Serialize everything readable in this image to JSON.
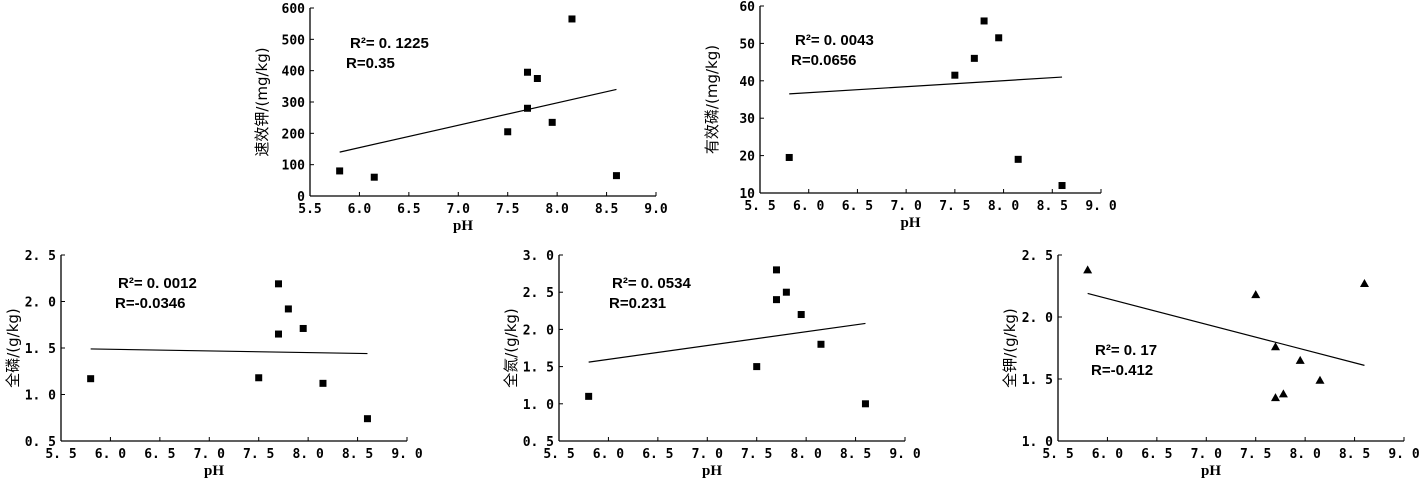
{
  "chart_data": [
    {
      "type": "scatter",
      "xlabel": "pH",
      "ylabel": "速效钾/(mg/kg)",
      "xlim": [
        5.5,
        9.0
      ],
      "ylim": [
        0,
        600
      ],
      "xticks": [
        "5.5",
        "6.0",
        "6.5",
        "7.0",
        "7.5",
        "8.0",
        "8.5",
        "9.0"
      ],
      "yticks": [
        "0",
        "100",
        "200",
        "300",
        "400",
        "500",
        "600"
      ],
      "marker": "square",
      "points": [
        {
          "x": 5.8,
          "y": 80
        },
        {
          "x": 6.15,
          "y": 60
        },
        {
          "x": 7.5,
          "y": 205
        },
        {
          "x": 7.7,
          "y": 280
        },
        {
          "x": 7.7,
          "y": 395
        },
        {
          "x": 7.8,
          "y": 375
        },
        {
          "x": 7.95,
          "y": 235
        },
        {
          "x": 8.15,
          "y": 565
        },
        {
          "x": 8.6,
          "y": 65
        }
      ],
      "trendline": [
        [
          5.8,
          140
        ],
        [
          8.6,
          340
        ]
      ],
      "r2_label": "R²=  0. 1225",
      "r_label": "R=0.35"
    },
    {
      "type": "scatter",
      "xlabel": "pH",
      "ylabel": "有效磷/(mg/kg)",
      "xlim": [
        5.5,
        9.0
      ],
      "ylim": [
        10,
        60
      ],
      "xticks": [
        "5. 5",
        "6. 0",
        "6. 5",
        "7. 0",
        "7. 5",
        "8. 0",
        "8. 5",
        "9. 0"
      ],
      "yticks": [
        "10",
        "20",
        "30",
        "40",
        "50",
        "60"
      ],
      "marker": "square",
      "points": [
        {
          "x": 5.8,
          "y": 19.5
        },
        {
          "x": 7.5,
          "y": 41.5
        },
        {
          "x": 7.7,
          "y": 46
        },
        {
          "x": 7.8,
          "y": 56
        },
        {
          "x": 7.95,
          "y": 51.5
        },
        {
          "x": 8.15,
          "y": 19
        },
        {
          "x": 8.6,
          "y": 12
        }
      ],
      "trendline": [
        [
          5.8,
          36.5
        ],
        [
          8.6,
          41
        ]
      ],
      "r2_label": "R²=  0. 0043",
      "r_label": "R=0.0656"
    },
    {
      "type": "scatter",
      "xlabel": "pH",
      "ylabel": "全磷/(g/kg)",
      "xlim": [
        5.5,
        9.0
      ],
      "ylim": [
        0.5,
        2.5
      ],
      "xticks": [
        "5. 5",
        "6. 0",
        "6. 5",
        "7. 0",
        "7. 5",
        "8. 0",
        "8. 5",
        "9. 0"
      ],
      "yticks": [
        "0. 5",
        "1. 0",
        "1. 5",
        "2. 0",
        "2. 5"
      ],
      "marker": "square",
      "points": [
        {
          "x": 5.8,
          "y": 1.17
        },
        {
          "x": 7.5,
          "y": 1.18
        },
        {
          "x": 7.7,
          "y": 2.19
        },
        {
          "x": 7.7,
          "y": 1.65
        },
        {
          "x": 7.8,
          "y": 1.92
        },
        {
          "x": 7.95,
          "y": 1.71
        },
        {
          "x": 8.15,
          "y": 1.12
        },
        {
          "x": 8.6,
          "y": 0.74
        }
      ],
      "trendline": [
        [
          5.8,
          1.49
        ],
        [
          8.6,
          1.44
        ]
      ],
      "r2_label": "R²=  0. 0012",
      "r_label": "R=-0.0346"
    },
    {
      "type": "scatter",
      "xlabel": "pH",
      "ylabel": "全氮/(g/kg)",
      "xlim": [
        5.5,
        9.0
      ],
      "ylim": [
        0.5,
        3.0
      ],
      "xticks": [
        "5. 5",
        "6. 0",
        "6. 5",
        "7. 0",
        "7. 5",
        "8. 0",
        "8. 5",
        "9. 0"
      ],
      "yticks": [
        "0. 5",
        "1. 0",
        "1. 5",
        "2. 0",
        "2. 5",
        "3. 0"
      ],
      "marker": "square",
      "points": [
        {
          "x": 5.8,
          "y": 1.1
        },
        {
          "x": 7.5,
          "y": 1.5
        },
        {
          "x": 7.7,
          "y": 2.8
        },
        {
          "x": 7.7,
          "y": 2.4
        },
        {
          "x": 7.8,
          "y": 2.5
        },
        {
          "x": 7.95,
          "y": 2.2
        },
        {
          "x": 8.15,
          "y": 1.8
        },
        {
          "x": 8.6,
          "y": 1.0
        }
      ],
      "trendline": [
        [
          5.8,
          1.56
        ],
        [
          8.6,
          2.08
        ]
      ],
      "r2_label": "R²=  0. 0534",
      "r_label": "R=0.231"
    },
    {
      "type": "scatter",
      "xlabel": "pH",
      "ylabel": "全钾/(g/kg)",
      "xlim": [
        5.5,
        9.0
      ],
      "ylim": [
        1.0,
        2.5
      ],
      "xticks": [
        "5. 5",
        "6. 0",
        "6. 5",
        "7. 0",
        "7. 5",
        "8. 0",
        "8. 5",
        "9. 0"
      ],
      "yticks": [
        "1. 0",
        "1. 5",
        "2. 0",
        "2. 5"
      ],
      "marker": "triangle",
      "points": [
        {
          "x": 5.8,
          "y": 2.38
        },
        {
          "x": 7.5,
          "y": 2.18
        },
        {
          "x": 7.7,
          "y": 1.76
        },
        {
          "x": 7.7,
          "y": 1.35
        },
        {
          "x": 7.78,
          "y": 1.38
        },
        {
          "x": 7.95,
          "y": 1.65
        },
        {
          "x": 8.15,
          "y": 1.49
        },
        {
          "x": 8.6,
          "y": 2.27
        }
      ],
      "trendline": [
        [
          5.8,
          2.19
        ],
        [
          8.6,
          1.61
        ]
      ],
      "r2_label": "R²=  0. 17",
      "r_label": "R=-0.412"
    }
  ]
}
